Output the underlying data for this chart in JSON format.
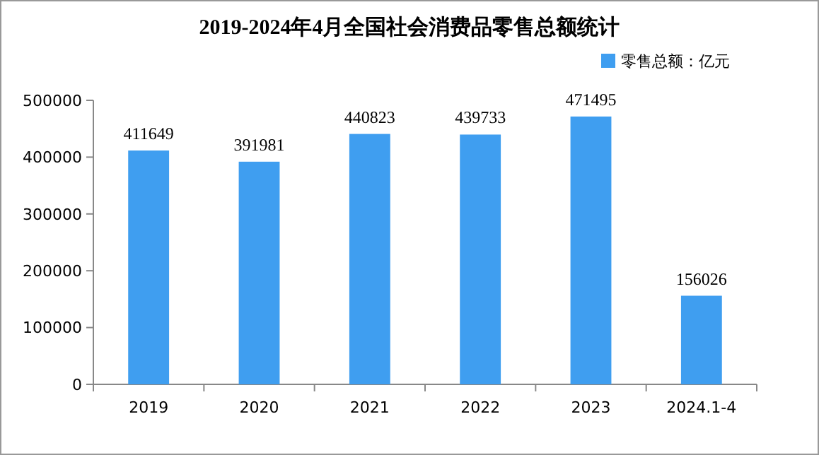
{
  "chart_data": {
    "type": "bar",
    "title": "2019-2024年4月全国社会消费品零售总额统计",
    "categories": [
      "2019",
      "2020",
      "2021",
      "2022",
      "2023",
      "2024.1-4"
    ],
    "series": [
      {
        "name": "零售总额：亿元",
        "color": "#3f9ef0",
        "values": [
          411649,
          391981,
          440823,
          439733,
          471495,
          156026
        ]
      }
    ],
    "ylim": [
      0,
      500000
    ],
    "yticks": [
      0,
      100000,
      200000,
      300000,
      400000,
      500000
    ],
    "data_labels": true,
    "grid": false,
    "legend": "top right"
  }
}
